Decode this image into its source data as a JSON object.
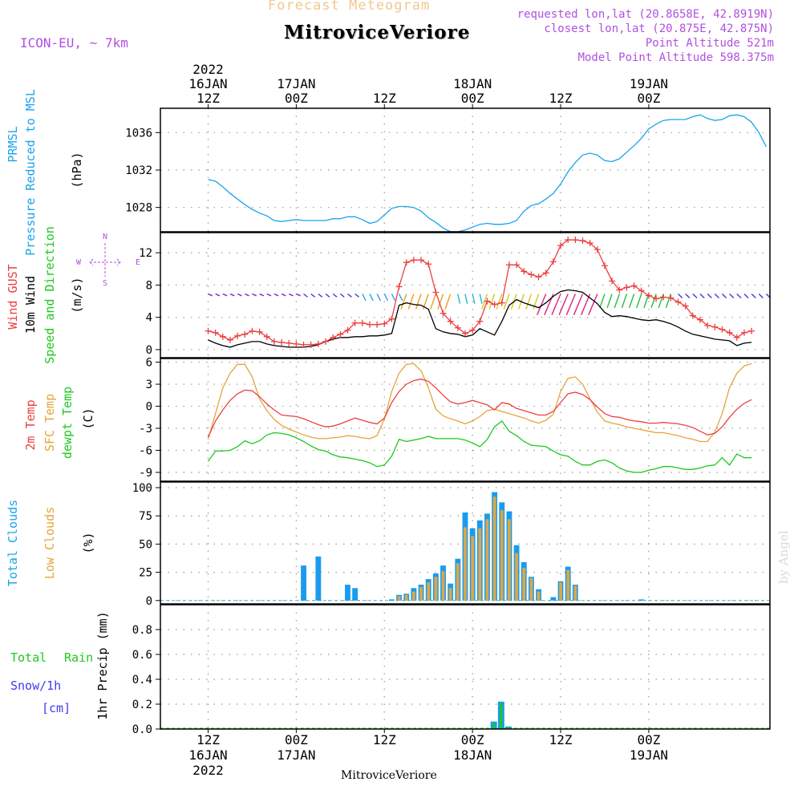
{
  "header": {
    "subtitle": "Forecast Meteogram",
    "title": "MitroviceVeriore",
    "model": "ICON-EU, ~ 7km",
    "requested": "requested lon,lat (20.8658E, 42.8919N)",
    "closest": "closest lon,lat (20.875E, 42.875N)",
    "point_alt": "Point Altitude 521m",
    "model_alt": "Model Point Altitude 598.375m",
    "footer": "MitroviceVeriore",
    "credit": "by Angel"
  },
  "colors": {
    "prmsl": "#1aa3ec",
    "gust": "#ec4040",
    "wind": "#000000",
    "temp": "#ec4040",
    "sfc": "#e6a43a",
    "dewpt": "#1ec81e",
    "total_clouds": "#1a9bef",
    "low_clouds": "#d9a84a",
    "rain": "#1ec81e",
    "snow": "#3c3cf0",
    "purple": "#b050e0",
    "label_black": "#000000"
  },
  "chart_data": [
    {
      "type": "line",
      "panel": "pressure",
      "labels": {
        "left1": "PRMSL",
        "left2": "Pressure Reduced to MSL",
        "unit": "(hPa)"
      },
      "time_axis": {
        "top_ticks": [
          {
            "time": "2022-01-16 12Z",
            "lines": [
              "2022",
              "16JAN",
              "12Z"
            ]
          },
          {
            "time": "2022-01-17 00Z",
            "lines": [
              "17JAN",
              "00Z"
            ]
          },
          {
            "time": "2022-01-17 12Z",
            "lines": [
              "12Z"
            ]
          },
          {
            "time": "2022-01-18 00Z",
            "lines": [
              "18JAN",
              "00Z"
            ]
          },
          {
            "time": "2022-01-18 12Z",
            "lines": [
              "12Z"
            ]
          },
          {
            "time": "2022-01-19 00Z",
            "lines": [
              "19JAN",
              "00Z"
            ]
          }
        ],
        "bottom_ticks": [
          {
            "time": "2022-01-16 12Z",
            "lines": [
              "12Z",
              "16JAN",
              "2022"
            ]
          },
          {
            "time": "2022-01-17 00Z",
            "lines": [
              "00Z",
              "17JAN"
            ]
          },
          {
            "time": "2022-01-17 12Z",
            "lines": [
              "12Z"
            ]
          },
          {
            "time": "2022-01-18 00Z",
            "lines": [
              "00Z",
              "18JAN"
            ]
          },
          {
            "time": "2022-01-18 12Z",
            "lines": [
              "12Z"
            ]
          },
          {
            "time": "2022-01-19 00Z",
            "lines": [
              "00Z",
              "19JAN"
            ]
          }
        ]
      },
      "x_hours": [
        0,
        1,
        2,
        3,
        4,
        5,
        6,
        7,
        8,
        9,
        10,
        11,
        12,
        13,
        14,
        15,
        16,
        17,
        18,
        19,
        20,
        21,
        22,
        23,
        24,
        25,
        26,
        27,
        28,
        29,
        30,
        31,
        32,
        33,
        34,
        35,
        36,
        37,
        38,
        39,
        40,
        41,
        42,
        43,
        44,
        45,
        46,
        47,
        48,
        49,
        50,
        51,
        52,
        53,
        54,
        55,
        56,
        57,
        58,
        59,
        60,
        61,
        62,
        63,
        64,
        65,
        66,
        67,
        68,
        69,
        70,
        71,
        72,
        73,
        74,
        75,
        76
      ],
      "ylim": [
        1025.4,
        1038.6
      ],
      "yticks": [
        1028,
        1032,
        1036
      ],
      "series": [
        {
          "values": [
            1031.0,
            1030.8,
            1030.2,
            1029.5,
            1028.9,
            1028.3,
            1027.8,
            1027.4,
            1027.1,
            1026.6,
            1026.5,
            1026.6,
            1026.7,
            1026.6,
            1026.6,
            1026.6,
            1026.6,
            1026.8,
            1026.8,
            1027.0,
            1027.0,
            1026.7,
            1026.3,
            1026.5,
            1027.2,
            1027.9,
            1028.1,
            1028.1,
            1028.0,
            1027.6,
            1026.9,
            1026.4,
            1025.8,
            1025.4,
            1025.4,
            1025.6,
            1025.9,
            1026.2,
            1026.3,
            1026.2,
            1026.2,
            1026.3,
            1026.6,
            1027.6,
            1028.2,
            1028.4,
            1028.9,
            1029.5,
            1030.5,
            1031.8,
            1032.8,
            1033.6,
            1033.8,
            1033.6,
            1033.0,
            1032.9,
            1033.2,
            1033.9,
            1034.6,
            1035.4,
            1036.4,
            1036.9,
            1037.3,
            1037.4,
            1037.4,
            1037.4,
            1037.7,
            1037.9,
            1037.5,
            1037.3,
            1037.4,
            1037.8,
            1037.9,
            1037.7,
            1037.1,
            1036.0,
            1034.5
          ]
        }
      ]
    },
    {
      "type": "line",
      "panel": "wind",
      "labels": {
        "gust": "Wind GUST",
        "wind10": "10m Wind",
        "speed_dir": "Speed and Direction",
        "unit": "(m/s)"
      },
      "compass": {
        "n": "N",
        "s": "S",
        "e": "E",
        "w": "W"
      },
      "ylim": [
        -1,
        14.5
      ],
      "yticks": [
        0,
        4,
        8,
        12
      ],
      "series": [
        {
          "name": "Wind GUST",
          "values": [
            2.3,
            2.1,
            1.6,
            1.2,
            1.7,
            1.9,
            2.3,
            2.2,
            1.6,
            1.0,
            0.9,
            0.8,
            0.7,
            0.6,
            0.6,
            0.7,
            1.0,
            1.5,
            1.9,
            2.4,
            3.3,
            3.3,
            3.1,
            3.1,
            3.2,
            3.8,
            7.8,
            10.8,
            11.1,
            11.1,
            10.6,
            7.1,
            4.5,
            3.5,
            2.7,
            2.0,
            2.4,
            3.5,
            6.0,
            5.6,
            5.8,
            10.5,
            10.5,
            9.7,
            9.3,
            9.0,
            9.5,
            10.9,
            12.9,
            13.6,
            13.6,
            13.5,
            13.2,
            12.4,
            10.4,
            8.5,
            7.4,
            7.7,
            7.9,
            7.3,
            6.7,
            6.3,
            6.5,
            6.4,
            5.9,
            5.4,
            4.2,
            3.7,
            3.0,
            2.8,
            2.5,
            2.1,
            1.5,
            2.1,
            2.3
          ]
        },
        {
          "name": "10m Wind",
          "values": [
            1.2,
            0.8,
            0.5,
            0.3,
            0.6,
            0.8,
            1.0,
            1.0,
            0.7,
            0.5,
            0.4,
            0.3,
            0.3,
            0.3,
            0.4,
            0.6,
            1.0,
            1.3,
            1.5,
            1.5,
            1.6,
            1.6,
            1.7,
            1.7,
            1.8,
            2.0,
            5.5,
            5.8,
            5.6,
            5.5,
            5.0,
            2.6,
            2.2,
            2.0,
            1.9,
            1.6,
            1.8,
            2.6,
            2.2,
            1.8,
            3.5,
            5.5,
            6.2,
            5.8,
            5.5,
            5.2,
            5.8,
            6.6,
            7.2,
            7.4,
            7.3,
            7.1,
            6.4,
            5.7,
            4.6,
            4.1,
            4.2,
            4.1,
            3.9,
            3.7,
            3.6,
            3.7,
            3.5,
            3.2,
            2.8,
            2.3,
            1.9,
            1.7,
            1.5,
            1.3,
            1.2,
            1.1,
            0.5,
            0.8,
            0.9
          ]
        }
      ]
    },
    {
      "type": "line",
      "panel": "temperature",
      "labels": {
        "t2m": "2m Temp",
        "sfc": "SFC Temp",
        "dewpt": "dewpt Temp",
        "unit": "(C)"
      },
      "ylim": [
        -10.2,
        6.5
      ],
      "yticks": [
        -9,
        -6,
        -3,
        0,
        3,
        6
      ],
      "series": [
        {
          "name": "2m Temp",
          "values": [
            -4.2,
            -2.0,
            -0.5,
            0.8,
            1.7,
            2.2,
            2.1,
            1.3,
            0.3,
            -0.5,
            -1.2,
            -1.3,
            -1.4,
            -1.7,
            -2.1,
            -2.5,
            -2.8,
            -2.7,
            -2.4,
            -2.0,
            -1.6,
            -1.9,
            -2.2,
            -2.4,
            -1.6,
            0.5,
            2.0,
            3.0,
            3.5,
            3.7,
            3.4,
            2.5,
            1.5,
            0.6,
            0.3,
            0.5,
            0.8,
            0.5,
            0.2,
            -0.5,
            0.5,
            0.3,
            -0.3,
            -0.6,
            -0.9,
            -1.2,
            -1.2,
            -0.7,
            0.5,
            1.7,
            1.9,
            1.6,
            0.9,
            -0.1,
            -1.0,
            -1.4,
            -1.5,
            -1.8,
            -2.0,
            -2.1,
            -2.3,
            -2.3,
            -2.2,
            -2.3,
            -2.4,
            -2.6,
            -2.9,
            -3.4,
            -3.9,
            -3.7,
            -2.8,
            -1.5,
            -0.4,
            0.4,
            0.9
          ]
        },
        {
          "name": "SFC Temp",
          "values": [
            -4.5,
            -1.0,
            2.5,
            4.5,
            5.7,
            5.7,
            4.0,
            1.0,
            -0.6,
            -1.8,
            -2.6,
            -3.1,
            -3.5,
            -3.9,
            -4.2,
            -4.4,
            -4.4,
            -4.3,
            -4.2,
            -4.0,
            -4.1,
            -4.3,
            -4.4,
            -4.0,
            -1.7,
            2.0,
            4.5,
            5.7,
            5.8,
            4.8,
            2.5,
            -0.4,
            -1.3,
            -1.7,
            -2.0,
            -2.4,
            -2.0,
            -1.4,
            -0.6,
            -0.4,
            -0.7,
            -1.0,
            -1.3,
            -1.6,
            -2.0,
            -2.3,
            -1.9,
            -1.1,
            2.0,
            3.8,
            4.0,
            3.0,
            1.0,
            -0.8,
            -2.0,
            -2.3,
            -2.5,
            -2.8,
            -3.0,
            -3.2,
            -3.4,
            -3.6,
            -3.6,
            -3.8,
            -4.0,
            -4.3,
            -4.5,
            -4.8,
            -4.8,
            -3.5,
            -1.0,
            2.5,
            4.5,
            5.5,
            5.8
          ]
        },
        {
          "name": "dewpt Temp",
          "values": [
            -7.5,
            -6.1,
            -6.1,
            -6.0,
            -5.5,
            -4.7,
            -5.1,
            -4.7,
            -3.9,
            -3.6,
            -3.7,
            -3.9,
            -4.3,
            -4.8,
            -5.4,
            -5.9,
            -6.1,
            -6.6,
            -6.9,
            -7.0,
            -7.2,
            -7.4,
            -7.7,
            -8.2,
            -8.0,
            -6.8,
            -4.5,
            -4.8,
            -4.6,
            -4.4,
            -4.1,
            -4.4,
            -4.4,
            -4.4,
            -4.4,
            -4.6,
            -5.0,
            -5.5,
            -4.5,
            -2.8,
            -2.0,
            -3.4,
            -4.0,
            -4.8,
            -5.3,
            -5.4,
            -5.5,
            -6.1,
            -6.6,
            -6.8,
            -7.5,
            -8.0,
            -8.0,
            -7.5,
            -7.3,
            -7.7,
            -8.4,
            -8.8,
            -9.0,
            -9.0,
            -8.7,
            -8.5,
            -8.2,
            -8.2,
            -8.4,
            -8.6,
            -8.6,
            -8.4,
            -8.1,
            -8.0,
            -7.0,
            -8.0,
            -6.5,
            -7.0,
            -7.0
          ]
        }
      ]
    },
    {
      "type": "bar",
      "panel": "clouds",
      "labels": {
        "total": "Total Clouds",
        "low": "Low Clouds",
        "unit": "(%)"
      },
      "ylim": [
        -3,
        105
      ],
      "yticks": [
        0,
        25,
        50,
        75,
        100
      ],
      "series": [
        {
          "name": "Total Clouds",
          "values": [
            0,
            0,
            0,
            0,
            0,
            0,
            0,
            0,
            0,
            0,
            0,
            0,
            0,
            31,
            0,
            39,
            0,
            0,
            0,
            14,
            11,
            0,
            0,
            0,
            0,
            1,
            5,
            6,
            11,
            14,
            19,
            24,
            31,
            15,
            37,
            78,
            64,
            71,
            77,
            96,
            87,
            79,
            49,
            34,
            21,
            10,
            0,
            3,
            17,
            30,
            14,
            0,
            0,
            0,
            0,
            0,
            0,
            0,
            0,
            1,
            0,
            0,
            0,
            0,
            0,
            0,
            0,
            0,
            0,
            0,
            0,
            0,
            0,
            0,
            0
          ]
        },
        {
          "name": "Low Clouds",
          "values": [
            0,
            0,
            0,
            0,
            0,
            0,
            0,
            0,
            0,
            0,
            0,
            0,
            0,
            0,
            0,
            0,
            0,
            0,
            0,
            0,
            0,
            0,
            0,
            0,
            0,
            0,
            4,
            5,
            8,
            12,
            16,
            21,
            26,
            11,
            33,
            65,
            57,
            64,
            72,
            92,
            80,
            72,
            42,
            29,
            20,
            8,
            0,
            0,
            16,
            27,
            13,
            0,
            0,
            0,
            0,
            0,
            0,
            0,
            0,
            0,
            0,
            0,
            0,
            0,
            0,
            0,
            0,
            0,
            0,
            0,
            0,
            0,
            0,
            0,
            0
          ]
        }
      ]
    },
    {
      "type": "bar",
      "panel": "precipitation",
      "labels": {
        "total": "Total",
        "rain": "Rain",
        "snow": "Snow/1h",
        "cm": "[cm]",
        "precip": "1hr Precip (mm)"
      },
      "ylim": [
        0,
        1.0
      ],
      "yticks": [
        0,
        0.2,
        0.4,
        0.6,
        0.8
      ],
      "bars": [
        {
          "hour": 38.9,
          "total": 0.06,
          "rain": 0.05
        },
        {
          "hour": 39.9,
          "total": 0.22,
          "rain": 0.21
        },
        {
          "hour": 40.9,
          "total": 0.02,
          "rain": 0.02
        }
      ]
    }
  ]
}
